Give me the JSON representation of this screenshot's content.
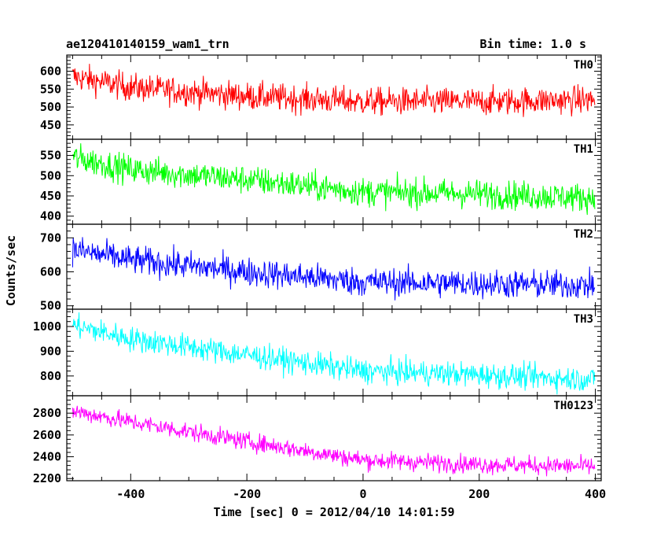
{
  "chart_data": {
    "type": "line",
    "title": "ae120410140159_wam1_trn",
    "bin_time_label": "Bin time: 1.0 s",
    "xlabel": "Time [sec] 0 = 2012/04/10 14:01:59",
    "ylabel": "Counts/sec",
    "xlim": [
      -510,
      410
    ],
    "x_ticks": [
      -400,
      -200,
      0,
      200,
      400
    ],
    "x_data_range": [
      -500,
      399
    ],
    "bin_seconds": 1,
    "panels": [
      {
        "name": "TH0",
        "color": "#ff0000",
        "ylim": [
          410,
          645
        ],
        "y_ticks": [
          450,
          500,
          550,
          600
        ],
        "trend": [
          [
            -500,
            585
          ],
          [
            -400,
            555
          ],
          [
            -200,
            530
          ],
          [
            0,
            515
          ],
          [
            200,
            515
          ],
          [
            399,
            520
          ]
        ],
        "noise_amplitude": 35
      },
      {
        "name": "TH1",
        "color": "#00ff00",
        "ylim": [
          380,
          590
        ],
        "y_ticks": [
          400,
          450,
          500,
          550
        ],
        "trend": [
          [
            -500,
            545
          ],
          [
            -400,
            515
          ],
          [
            -200,
            490
          ],
          [
            0,
            460
          ],
          [
            200,
            455
          ],
          [
            399,
            445
          ]
        ],
        "noise_amplitude": 32
      },
      {
        "name": "TH2",
        "color": "#0000ff",
        "ylim": [
          490,
          740
        ],
        "y_ticks": [
          500,
          600,
          700
        ],
        "trend": [
          [
            -500,
            665
          ],
          [
            -400,
            635
          ],
          [
            -200,
            600
          ],
          [
            0,
            570
          ],
          [
            200,
            565
          ],
          [
            399,
            560
          ]
        ],
        "noise_amplitude": 38
      },
      {
        "name": "TH3",
        "color": "#00ffff",
        "ylim": [
          720,
          1070
        ],
        "y_ticks": [
          800,
          900,
          1000
        ],
        "trend": [
          [
            -500,
            1005
          ],
          [
            -400,
            950
          ],
          [
            -200,
            885
          ],
          [
            0,
            820
          ],
          [
            200,
            805
          ],
          [
            399,
            785
          ]
        ],
        "noise_amplitude": 45
      },
      {
        "name": "TH0123",
        "color": "#ff00ff",
        "ylim": [
          2180,
          2960
        ],
        "y_ticks": [
          2200,
          2400,
          2600,
          2800
        ],
        "trend": [
          [
            -500,
            2820
          ],
          [
            -400,
            2720
          ],
          [
            -200,
            2540
          ],
          [
            0,
            2370
          ],
          [
            200,
            2330
          ],
          [
            399,
            2310
          ]
        ],
        "noise_amplitude": 75
      }
    ]
  }
}
